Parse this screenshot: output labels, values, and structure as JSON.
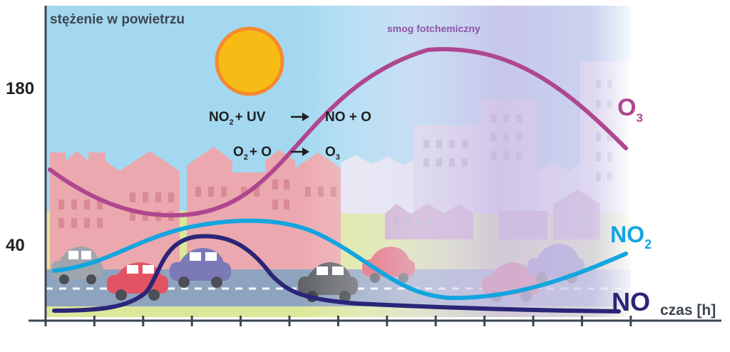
{
  "title": "stężenie w powietrzu",
  "y_axis": {
    "label": "stężenie w powietrzu",
    "ticks": [
      "180",
      "40"
    ]
  },
  "x_axis": {
    "label": "czas [h]"
  },
  "annotation": "smog fotchemiczny",
  "reactions": [
    {
      "left": "NO",
      "left_sub": "2",
      "plus": "+ UV",
      "right": "NO + O",
      "right_sub": ""
    },
    {
      "left": "O",
      "left_sub": "2",
      "plus": "+ O",
      "right": "O",
      "right_sub": "3"
    }
  ],
  "series": [
    {
      "name": "O",
      "sub": "3",
      "color": "#b0468f"
    },
    {
      "name": "NO",
      "sub": "2",
      "color": "#12a5e0"
    },
    {
      "name": "NO",
      "sub": "",
      "color": "#2b2578"
    }
  ],
  "colors": {
    "sky": "#a4d8f1",
    "sun": "#f7bb16",
    "sun_ring": "#f58a2d",
    "buildings": "#eba8ae",
    "smog": "#c9bce4",
    "road": "#8ea3be",
    "grass": "#dbe89a",
    "axis": "#3d4650"
  }
}
